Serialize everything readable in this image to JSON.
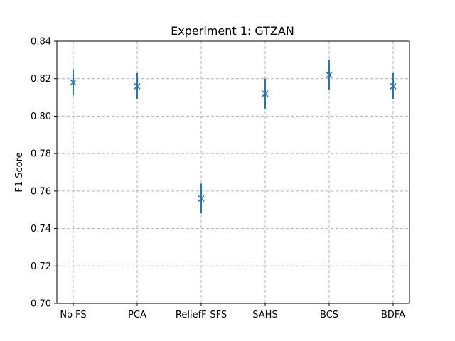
{
  "chart_data": {
    "type": "scatter",
    "title": "Experiment 1: GTZAN",
    "xlabel": "",
    "ylabel": "F1 Score",
    "categories": [
      "No FS",
      "PCA",
      "ReliefF-SFS",
      "SAHS",
      "BCS",
      "BDFA"
    ],
    "series": [
      {
        "values": [
          0.818,
          0.816,
          0.756,
          0.812,
          0.822,
          0.816
        ],
        "errors": [
          0.007,
          0.007,
          0.008,
          0.008,
          0.008,
          0.007
        ],
        "marker": "x",
        "color": "#1f77b4"
      }
    ],
    "ylim": [
      0.7,
      0.84
    ],
    "yticks": [
      "0.70",
      "0.72",
      "0.74",
      "0.76",
      "0.78",
      "0.80",
      "0.82",
      "0.84"
    ],
    "grid": true
  }
}
